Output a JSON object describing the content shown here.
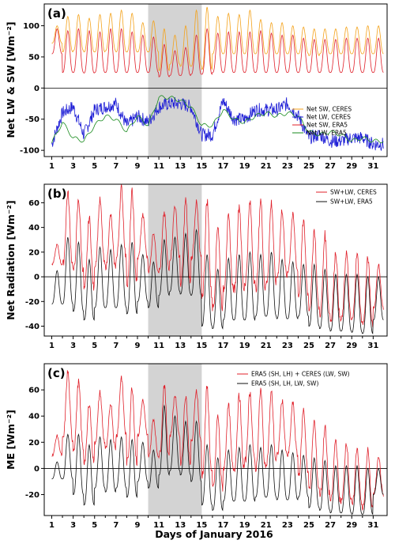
{
  "figure": {
    "xlabel": "Days of January 2016"
  },
  "chart_data": [
    {
      "panel": "(a)",
      "type": "line",
      "ylabel": "Net LW & SW [Wm⁻²]",
      "ylim": [
        -110,
        135
      ],
      "yticks": [
        -100,
        -50,
        0,
        50,
        100
      ],
      "xlim": [
        0.3,
        32.3
      ],
      "xticks": [
        1,
        2,
        3,
        4,
        5,
        6,
        7,
        8,
        9,
        10,
        11,
        12,
        13,
        14,
        15,
        16,
        17,
        18,
        19,
        20,
        21,
        22,
        23,
        24,
        25,
        26,
        27,
        28,
        29,
        30,
        31
      ],
      "xticklabels": [
        "1",
        "",
        "3",
        "",
        "5",
        "",
        "7",
        "",
        "9",
        "",
        "11",
        "",
        "13",
        "",
        "15",
        "",
        "17",
        "",
        "19",
        "",
        "21",
        "",
        "23",
        "",
        "25",
        "",
        "27",
        "",
        "29",
        "",
        "31"
      ],
      "shaded_period": [
        10,
        15
      ],
      "zero_line": true,
      "legend_position": "center-right",
      "legend": [
        {
          "name": "Net SW, CERES",
          "color": "#f4a21a"
        },
        {
          "name": "Net LW, CERES",
          "color": "#1f1fd6"
        },
        {
          "name": "Net SW, ERA5",
          "color": "#e0202a"
        },
        {
          "name": "Net LW, ERA5",
          "color": "#178a1c"
        }
      ],
      "series": [
        {
          "name": "Net SW, CERES",
          "color": "#f4a21a",
          "kind": "diurnal",
          "daily_max": [
            100,
            115,
            118,
            112,
            118,
            120,
            125,
            120,
            105,
            108,
            95,
            85,
            100,
            125,
            130,
            115,
            120,
            118,
            125,
            110,
            105,
            105,
            100,
            98,
            95,
            95,
            95,
            98,
            98,
            100,
            100
          ],
          "daily_min": [
            72,
            58,
            60,
            58,
            58,
            60,
            58,
            58,
            58,
            58,
            28,
            38,
            35,
            35,
            30,
            55,
            55,
            55,
            55,
            55,
            55,
            55,
            55,
            55,
            52,
            55,
            55,
            55,
            55,
            55,
            55
          ]
        },
        {
          "name": "Net SW, ERA5",
          "color": "#e0202a",
          "kind": "diurnal",
          "daily_max": [
            95,
            92,
            95,
            92,
            90,
            95,
            95,
            90,
            85,
            82,
            70,
            60,
            65,
            85,
            95,
            88,
            90,
            90,
            90,
            92,
            88,
            85,
            85,
            80,
            78,
            78,
            78,
            80,
            80,
            80,
            80
          ],
          "daily_min": [
            55,
            25,
            25,
            24,
            25,
            25,
            25,
            25,
            25,
            25,
            18,
            20,
            20,
            22,
            22,
            25,
            25,
            25,
            25,
            25,
            25,
            25,
            25,
            25,
            25,
            25,
            25,
            25,
            25,
            25,
            25
          ]
        },
        {
          "name": "Net LW, CERES",
          "color": "#1f1fd6",
          "kind": "noisy",
          "daily": [
            -90,
            -40,
            -30,
            -75,
            -35,
            -30,
            -25,
            -60,
            -45,
            -55,
            -30,
            -25,
            -25,
            -30,
            -75,
            -75,
            -20,
            -50,
            -50,
            -35,
            -35,
            -35,
            -25,
            -45,
            -80,
            -75,
            -85,
            -85,
            -80,
            -80,
            -90
          ]
        },
        {
          "name": "Net LW, ERA5",
          "color": "#178a1c",
          "kind": "smooth",
          "daily": [
            -88,
            -55,
            -80,
            -85,
            -60,
            -45,
            -50,
            -70,
            -45,
            -60,
            -15,
            -15,
            -20,
            -30,
            -60,
            -60,
            -35,
            -50,
            -55,
            -45,
            -40,
            -45,
            -40,
            -45,
            -70,
            -75,
            -70,
            -75,
            -85,
            -80,
            -85
          ]
        }
      ]
    },
    {
      "panel": "(b)",
      "type": "line",
      "ylabel": "Net Radiation [Wm⁻²]",
      "ylim": [
        -48,
        75
      ],
      "yticks": [
        -40,
        -20,
        0,
        20,
        40,
        60
      ],
      "xlim": [
        0.3,
        32.3
      ],
      "xticks": [
        1,
        2,
        3,
        4,
        5,
        6,
        7,
        8,
        9,
        10,
        11,
        12,
        13,
        14,
        15,
        16,
        17,
        18,
        19,
        20,
        21,
        22,
        23,
        24,
        25,
        26,
        27,
        28,
        29,
        30,
        31
      ],
      "xticklabels": [
        "1",
        "",
        "3",
        "",
        "5",
        "",
        "7",
        "",
        "9",
        "",
        "11",
        "",
        "13",
        "",
        "15",
        "",
        "17",
        "",
        "19",
        "",
        "21",
        "",
        "23",
        "",
        "25",
        "",
        "27",
        "",
        "29",
        "",
        "31"
      ],
      "shaded_period": [
        10,
        15
      ],
      "zero_line": true,
      "legend_position": "top-right",
      "legend": [
        {
          "name": "SW+LW, CERES",
          "color": "#e0202a"
        },
        {
          "name": "SW+LW, ERA5",
          "color": "#111111"
        }
      ],
      "series": [
        {
          "name": "SW+LW, CERES",
          "color": "#e0202a",
          "kind": "diurnal_noisy",
          "daily_max": [
            26,
            68,
            62,
            48,
            62,
            50,
            72,
            68,
            50,
            36,
            52,
            58,
            62,
            60,
            62,
            42,
            48,
            58,
            60,
            62,
            60,
            54,
            50,
            45,
            38,
            34,
            20,
            20,
            18,
            15,
            10
          ],
          "daily_min": [
            10,
            10,
            5,
            -10,
            10,
            8,
            15,
            -5,
            15,
            5,
            5,
            15,
            -5,
            15,
            -15,
            -25,
            -10,
            -10,
            -5,
            -10,
            -5,
            0,
            5,
            -15,
            -25,
            -30,
            -35,
            -35,
            -35,
            -38,
            -25
          ]
        },
        {
          "name": "SW+LW, ERA5",
          "color": "#111111",
          "kind": "diurnal",
          "daily_max": [
            5,
            32,
            28,
            14,
            24,
            22,
            26,
            28,
            18,
            12,
            30,
            32,
            35,
            38,
            18,
            6,
            15,
            18,
            20,
            18,
            20,
            14,
            12,
            10,
            10,
            6,
            2,
            2,
            2,
            0,
            0
          ],
          "daily_min": [
            -22,
            -22,
            -28,
            -35,
            -25,
            -25,
            -25,
            -30,
            -20,
            -25,
            -15,
            -12,
            -14,
            -15,
            -40,
            -42,
            -35,
            -35,
            -35,
            -32,
            -32,
            -34,
            -34,
            -32,
            -40,
            -42,
            -44,
            -44,
            -45,
            -46,
            -35
          ]
        }
      ]
    },
    {
      "panel": "(c)",
      "type": "line",
      "ylabel": "ME [Wm⁻²]",
      "ylim": [
        -36,
        80
      ],
      "yticks": [
        -20,
        0,
        20,
        40,
        60
      ],
      "xlim": [
        0.3,
        32.3
      ],
      "xticks": [
        1,
        2,
        3,
        4,
        5,
        6,
        7,
        8,
        9,
        10,
        11,
        12,
        13,
        14,
        15,
        16,
        17,
        18,
        19,
        20,
        21,
        22,
        23,
        24,
        25,
        26,
        27,
        28,
        29,
        30,
        31
      ],
      "xticklabels": [
        "1",
        "",
        "3",
        "",
        "5",
        "",
        "7",
        "",
        "9",
        "",
        "11",
        "",
        "13",
        "",
        "15",
        "",
        "17",
        "",
        "19",
        "",
        "21",
        "",
        "23",
        "",
        "25",
        "",
        "27",
        "",
        "29",
        "",
        "31"
      ],
      "shaded_period": [
        10,
        15
      ],
      "zero_line": true,
      "legend_position": "top-right",
      "legend": [
        {
          "name": "ERA5 (SH, LH) + CERES (LW, SW)",
          "color": "#e0202a"
        },
        {
          "name": "ERA5 (SH, LH, LW, SW)",
          "color": "#111111"
        }
      ],
      "series": [
        {
          "name": "ERA5 (SH, LH) + CERES (LW, SW)",
          "color": "#e0202a",
          "kind": "diurnal_noisy",
          "daily_max": [
            25,
            74,
            66,
            50,
            58,
            50,
            70,
            62,
            52,
            38,
            64,
            56,
            56,
            60,
            62,
            40,
            48,
            56,
            58,
            60,
            58,
            52,
            50,
            45,
            36,
            32,
            22,
            20,
            16,
            14,
            10
          ],
          "daily_min": [
            10,
            22,
            15,
            5,
            20,
            15,
            25,
            5,
            25,
            10,
            10,
            25,
            5,
            20,
            -5,
            -15,
            0,
            0,
            5,
            0,
            5,
            10,
            10,
            -5,
            -15,
            -20,
            -25,
            -25,
            -28,
            -30,
            -20
          ]
        },
        {
          "name": "ERA5 (SH, LH, LW, SW)",
          "color": "#111111",
          "kind": "diurnal",
          "daily_max": [
            5,
            26,
            26,
            18,
            24,
            22,
            24,
            22,
            20,
            14,
            48,
            40,
            36,
            36,
            18,
            8,
            14,
            16,
            18,
            16,
            18,
            14,
            12,
            10,
            8,
            6,
            2,
            2,
            2,
            0,
            0
          ],
          "daily_min": [
            -8,
            -8,
            -20,
            -28,
            -15,
            -18,
            -15,
            -22,
            -10,
            -15,
            -5,
            -2,
            -5,
            -10,
            -28,
            -32,
            -25,
            -25,
            -25,
            -22,
            -22,
            -24,
            -24,
            -22,
            -30,
            -32,
            -34,
            -34,
            -35,
            -35,
            -20
          ]
        }
      ]
    }
  ]
}
